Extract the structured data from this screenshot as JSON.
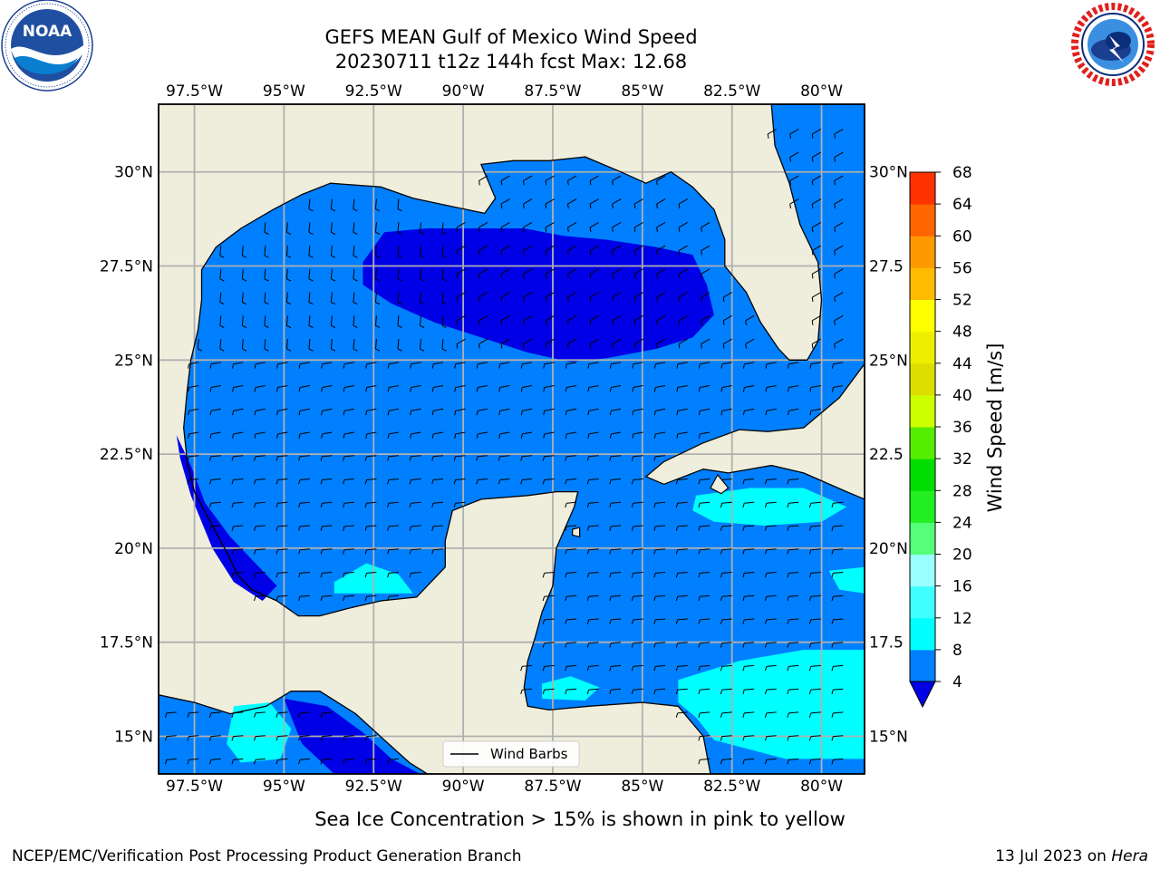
{
  "header": {
    "title_line1": "GEFS MEAN Gulf of Mexico Wind Speed",
    "title_line2": "20230711 t12z 144h fcst   Max: 12.68"
  },
  "logos": {
    "noara": {
      "name": "noaa-logo",
      "text": "NOAA",
      "ring": "NATIONAL OCEANIC AND ATMOSPHERIC ADMINISTRATION · U.S. DEPARTMENT OF COMMERCE"
    },
    "nws": {
      "name": "nws-logo",
      "ring": "NATIONAL WEATHER SERVICE"
    }
  },
  "map": {
    "lon_range": [
      -98.5,
      -78.8
    ],
    "lat_range": [
      14.0,
      31.8
    ],
    "lon_ticks": [
      {
        "v": -97.5,
        "label": "97.5°W"
      },
      {
        "v": -95.0,
        "label": "95°W"
      },
      {
        "v": -92.5,
        "label": "92.5°W"
      },
      {
        "v": -90.0,
        "label": "90°W"
      },
      {
        "v": -87.5,
        "label": "87.5°W"
      },
      {
        "v": -85.0,
        "label": "85°W"
      },
      {
        "v": -82.5,
        "label": "82.5°W"
      },
      {
        "v": -80.0,
        "label": "80°W"
      }
    ],
    "lat_ticks_left": [
      {
        "v": 30.0,
        "label": "30°N"
      },
      {
        "v": 27.5,
        "label": "27.5°N"
      },
      {
        "v": 25.0,
        "label": "25°N"
      },
      {
        "v": 22.5,
        "label": "22.5°N"
      },
      {
        "v": 20.0,
        "label": "20°N"
      },
      {
        "v": 17.5,
        "label": "17.5°N"
      },
      {
        "v": 15.0,
        "label": "15°N"
      }
    ],
    "lat_ticks_right": [
      {
        "v": 30.0,
        "label": "30°N"
      },
      {
        "v": 27.5,
        "label": "27.5"
      },
      {
        "v": 25.0,
        "label": "25°N"
      },
      {
        "v": 22.5,
        "label": "22.5"
      },
      {
        "v": 20.0,
        "label": "20°N"
      },
      {
        "v": 17.5,
        "label": "17.5"
      },
      {
        "v": 15.0,
        "label": "15°N"
      }
    ],
    "colors": {
      "land": "#efeedc",
      "ws_4_8": "#0080ff",
      "ws_below_4": "#0000e6",
      "ws_8_12": "#00ffff",
      "ws_12_16": "#40ffff",
      "grid": "#b0b0b0",
      "coast": "#000000"
    },
    "legend_label": "Wind Barbs"
  },
  "colorbar": {
    "label": "Wind Speed [m/s]",
    "levels": [
      4,
      8,
      12,
      16,
      20,
      24,
      28,
      32,
      36,
      40,
      44,
      48,
      52,
      56,
      60,
      64,
      68
    ],
    "colors": [
      "#0080ff",
      "#00ffff",
      "#40ffff",
      "#99ffff",
      "#55ff77",
      "#22ee22",
      "#00dd00",
      "#55ee00",
      "#ccff00",
      "#dddd00",
      "#eeee00",
      "#ffff00",
      "#ffbb00",
      "#ff9900",
      "#ff6600",
      "#ff3300"
    ],
    "under_color": "#0000e6",
    "over_color": "#ff0000"
  },
  "caption": "Sea Ice Concentration > 15% is shown in pink to yellow",
  "footer": {
    "left": "NCEP/EMC/Verification Post Processing Product Generation Branch",
    "right_prefix": "13 Jul 2023 on ",
    "right_machine": "Hera"
  }
}
